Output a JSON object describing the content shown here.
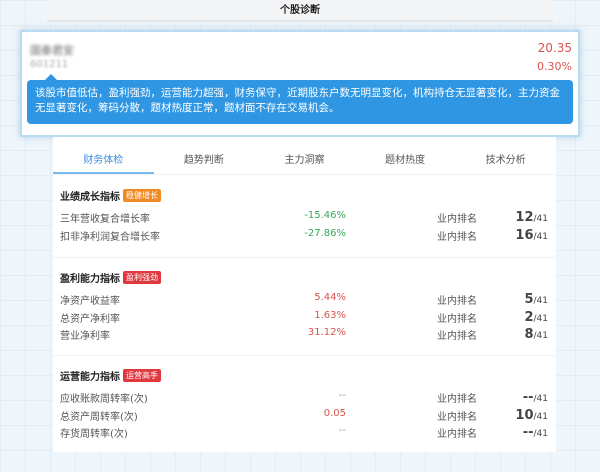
{
  "title": "个股诊断",
  "stock": {
    "name": "国泰君安",
    "code": "601211",
    "price": "20.35",
    "change": "0.30%",
    "summary": "该股市值低估，盈利强劲，运营能力超强，财务保守，近期股东户数无明显变化，机构持仓无显著变化，主力资金无显著变化，筹码分散，题材热度正常，题材面不存在交易机会。"
  },
  "tabs": [
    {
      "label": "财务体检",
      "active": true
    },
    {
      "label": "趋势判断"
    },
    {
      "label": "主力洞察"
    },
    {
      "label": "题材热度"
    },
    {
      "label": "技术分析"
    }
  ],
  "rank_label": "业内排名",
  "sections": [
    {
      "title": "业绩成长指标",
      "badge": "稳健增长",
      "badge_color": "#f08a24",
      "rows": [
        {
          "label": "三年营收复合增长率",
          "value": "-15.46%",
          "tone": "green",
          "rank": "12",
          "total": "/41"
        },
        {
          "label": "扣非净利润复合增长率",
          "value": "-27.86%",
          "tone": "green",
          "rank": "16",
          "total": "/41"
        }
      ]
    },
    {
      "title": "盈利能力指标",
      "badge": "盈利强劲",
      "badge_color": "#e0383e",
      "rows": [
        {
          "label": "净资产收益率",
          "value": "5.44%",
          "tone": "red",
          "rank": "5",
          "total": "/41"
        },
        {
          "label": "总资产净利率",
          "value": "1.63%",
          "tone": "red",
          "rank": "2",
          "total": "/41"
        },
        {
          "label": "营业净利率",
          "value": "31.12%",
          "tone": "red",
          "rank": "8",
          "total": "/41"
        }
      ]
    },
    {
      "title": "运营能力指标",
      "badge": "运营高手",
      "badge_color": "#e0383e",
      "rows": [
        {
          "label": "应收账款周转率(次)",
          "value": "--",
          "tone": "gray",
          "rank": "--",
          "total": "/41"
        },
        {
          "label": "总资产周转率(次)",
          "value": "0.05",
          "tone": "red",
          "rank": "10",
          "total": "/41"
        },
        {
          "label": "存货周转率(次)",
          "value": "--",
          "tone": "gray",
          "rank": "--",
          "total": "/41"
        }
      ]
    }
  ]
}
